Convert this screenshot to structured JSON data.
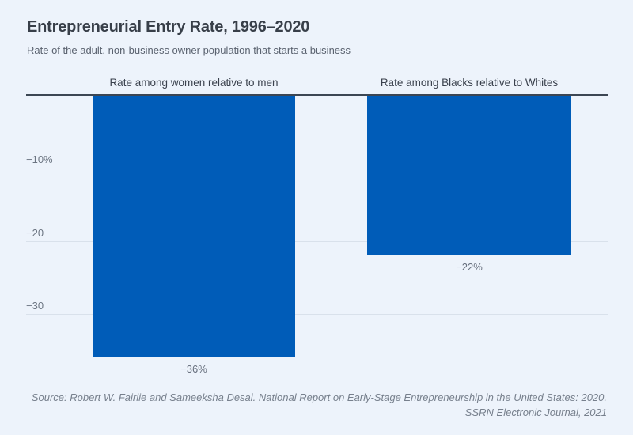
{
  "header": {
    "title": "Entrepreneurial Entry Rate, 1996–2020",
    "subtitle": "Rate of the adult, non-business owner population that starts a business"
  },
  "chart_data": {
    "type": "bar",
    "orientation": "vertical-negative",
    "categories": [
      "Rate among women relative to men",
      "Rate among Blacks relative to Whites"
    ],
    "values": [
      -36,
      -22
    ],
    "value_labels": [
      "−36%",
      "−22%"
    ],
    "unit": "%",
    "ylim": [
      -40,
      0
    ],
    "yticks": [
      {
        "value": -10,
        "label": "−10%"
      },
      {
        "value": -20,
        "label": "−20"
      },
      {
        "value": -30,
        "label": "−30"
      }
    ],
    "grid": true,
    "legend": false,
    "bar_color": "#005CB8",
    "background_color": "#EDF3FB",
    "axis_line_color": "#3C4653",
    "gridline_color": "#D9E1EB"
  },
  "footer": {
    "source_line1": "Source: Robert W. Fairlie and Sameeksha Desai. National Report on Early-Stage Entrepreneurship in the United States: 2020.",
    "source_line2": "SSRN Electronic Journal, 2021"
  }
}
